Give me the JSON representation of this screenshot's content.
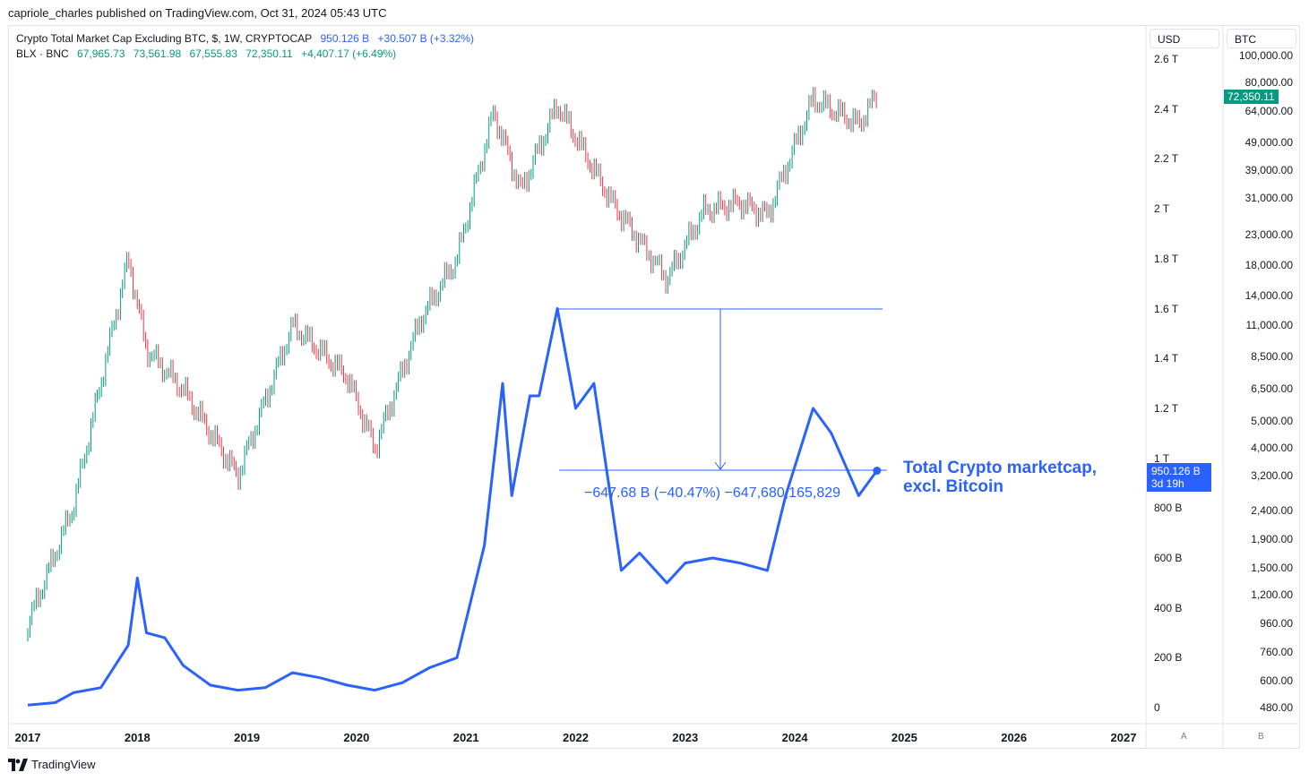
{
  "publisher_line": "capriole_charles published on TradingView.com, Oct 31, 2024 05:43 UTC",
  "legend": {
    "line1": {
      "symbol": "Crypto Total Market Cap Excluding BTC, $, 1W, CRYPTOCAP",
      "value": "950.126 B",
      "change": "+30.507 B (+3.32%)"
    },
    "line2": {
      "symbol": "BLX · BNC",
      "o": "67,965.73",
      "h": "73,561.98",
      "l": "67,555.83",
      "c": "72,350.11",
      "change": "+4,407.17 (+6.49%)"
    }
  },
  "scales": {
    "left_header": "USD",
    "right_header": "BTC",
    "usd_ticks": [
      "2.6 T",
      "2.4 T",
      "2.2 T",
      "2 T",
      "1.8 T",
      "1.6 T",
      "1.4 T",
      "1.2 T",
      "1 T",
      "800 B",
      "600 B",
      "400 B",
      "200 B",
      "0"
    ],
    "btc_ticks": [
      "100,000.00",
      "80,000.00",
      "64,000.00",
      "49,000.00",
      "39,000.00",
      "31,000.00",
      "23,000.00",
      "18,000.00",
      "14,000.00",
      "11,000.00",
      "8,500.00",
      "6,500.00",
      "5,000.00",
      "4,000.00",
      "3,200.00",
      "2,400.00",
      "1,900.00",
      "1,500.00",
      "1,200.00",
      "960.00",
      "760.00",
      "600.00",
      "480.00"
    ],
    "x_ticks": [
      "2017",
      "2018",
      "2019",
      "2020",
      "2021",
      "2022",
      "2023",
      "2024",
      "2025",
      "2026",
      "2027"
    ],
    "usd_corner": "A",
    "btc_corner": "B"
  },
  "badges": {
    "btc_price": "72,350.11",
    "usd_value": "950.126 B",
    "usd_countdown": "3d 19h"
  },
  "annotation": {
    "line1": "Total Crypto marketcap,",
    "line2": "excl. Bitcoin"
  },
  "measure_label": "−647.68 B (−40.47%) −647,680,165,829",
  "footer": {
    "brand": "TradingView",
    "logo_icon": "tradingview-logo-icon"
  },
  "colors": {
    "line": "#2962ff",
    "candle_up": "#089981",
    "candle_down": "#f23645",
    "btc_badge": "#089981",
    "usd_badge": "#2962ff"
  },
  "chart_data": [
    {
      "type": "line",
      "series": [
        {
          "name": "Crypto Total Market Cap Excluding BTC, $, 1W, CRYPTOCAP"
        }
      ],
      "x": [
        "2017-01",
        "2017-04",
        "2017-06",
        "2017-09",
        "2017-12",
        "2018-01",
        "2018-02",
        "2018-04",
        "2018-06",
        "2018-09",
        "2018-12",
        "2019-03",
        "2019-06",
        "2019-09",
        "2019-12",
        "2020-03",
        "2020-06",
        "2020-09",
        "2020-12",
        "2021-01",
        "2021-03",
        "2021-05",
        "2021-06",
        "2021-08",
        "2021-09",
        "2021-11",
        "2022-01",
        "2022-03",
        "2022-05",
        "2022-06",
        "2022-08",
        "2022-11",
        "2023-01",
        "2023-04",
        "2023-07",
        "2023-10",
        "2023-12",
        "2024-03",
        "2024-05",
        "2024-08",
        "2024-10"
      ],
      "y": [
        0.01,
        0.02,
        0.06,
        0.08,
        0.25,
        0.52,
        0.3,
        0.28,
        0.17,
        0.09,
        0.07,
        0.08,
        0.14,
        0.12,
        0.09,
        0.07,
        0.1,
        0.16,
        0.2,
        0.35,
        0.65,
        1.3,
        0.85,
        1.25,
        1.25,
        1.6,
        1.2,
        1.3,
        0.8,
        0.55,
        0.62,
        0.5,
        0.58,
        0.6,
        0.58,
        0.55,
        0.85,
        1.2,
        1.1,
        0.85,
        0.95
      ],
      "y_unit": "USD trillions",
      "ylim": [
        0,
        2.6
      ],
      "measure": {
        "from": 1.6,
        "to": 0.95232,
        "change_label": "−647.68 B (−40.47%) −647,680,165,829"
      }
    },
    {
      "type": "candlestick",
      "series": [
        {
          "name": "BLX · BNC"
        }
      ],
      "x": [
        "2017-01",
        "2017-06",
        "2017-12",
        "2018-02",
        "2018-06",
        "2018-12",
        "2019-06",
        "2019-12",
        "2020-03",
        "2020-08",
        "2020-12",
        "2021-04",
        "2021-07",
        "2021-11",
        "2022-05",
        "2022-11",
        "2023-03",
        "2023-07",
        "2023-10",
        "2024-03",
        "2024-08",
        "2024-10"
      ],
      "close": [
        950,
        2500,
        19000,
        9000,
        6500,
        3200,
        11000,
        7200,
        4000,
        11500,
        19000,
        63000,
        33000,
        67000,
        30000,
        16000,
        28000,
        30000,
        27000,
        70000,
        57000,
        72350
      ],
      "y_scale": "log",
      "y_unit": "USD",
      "ylim": [
        480,
        100000
      ]
    }
  ]
}
